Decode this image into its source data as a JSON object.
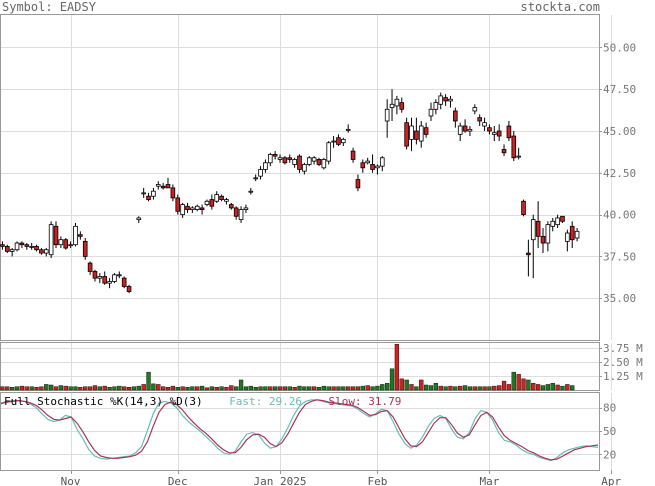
{
  "header": {
    "symbol_text": "Symbol: EADSY",
    "site_text": "stockta.com"
  },
  "stoch_legend": {
    "title": "Full Stochastic %K(14,3) %D(3)",
    "fast_label": "Fast: 29.26",
    "slow_label": "Slow: 31.79"
  },
  "colors": {
    "up_fill": "#ffffff",
    "down_fill": "#cc2222",
    "candle_edge": "#000000",
    "volume_up": "#227722",
    "volume_down": "#cc2222",
    "stoch_fast": "#66bbbb",
    "stoch_slow": "#aa3355",
    "grid": "#dddddd",
    "axis_text": "#777777"
  },
  "chart_data": [
    {
      "type": "candlestick",
      "title": "",
      "xlabel": "",
      "ylabel": "",
      "ylim": [
        32.5,
        52.0
      ],
      "y_ticks": [
        35.0,
        37.5,
        40.0,
        42.5,
        45.0,
        47.5,
        50.0
      ],
      "y_tick_labels": [
        "35.00",
        "37.50",
        "40.00",
        "42.50",
        "45.00",
        "47.50",
        "50.00"
      ],
      "x_tick_labels": [
        "Nov",
        "Dec",
        "Jan 2025",
        "Feb",
        "Mar",
        "Apr"
      ],
      "x_tick_index": [
        14,
        36,
        57,
        77,
        100,
        125
      ],
      "grid": true,
      "ohlc": [
        [
          38.2,
          38.4,
          37.9,
          38.1
        ],
        [
          38.1,
          38.2,
          37.7,
          37.8
        ],
        [
          37.8,
          38.0,
          37.5,
          37.9
        ],
        [
          37.9,
          38.4,
          37.8,
          38.3
        ],
        [
          38.3,
          38.4,
          38.0,
          38.2
        ],
        [
          38.2,
          38.3,
          37.9,
          38.1
        ],
        [
          38.1,
          38.3,
          37.9,
          38.1
        ],
        [
          38.1,
          38.2,
          37.8,
          37.9
        ],
        [
          37.9,
          38.0,
          37.6,
          37.7
        ],
        [
          37.7,
          38.0,
          37.5,
          37.9
        ],
        [
          37.6,
          39.6,
          37.4,
          39.4
        ],
        [
          39.3,
          39.6,
          38.0,
          38.2
        ],
        [
          38.2,
          38.7,
          38.0,
          38.5
        ],
        [
          38.5,
          38.6,
          37.9,
          38.0
        ],
        [
          38.2,
          38.4,
          38.0,
          38.2
        ],
        [
          38.2,
          39.5,
          38.1,
          39.3
        ],
        [
          38.8,
          39.0,
          38.5,
          38.7
        ],
        [
          38.4,
          38.6,
          37.3,
          37.5
        ],
        [
          37.1,
          37.2,
          36.4,
          36.6
        ],
        [
          36.6,
          36.7,
          36.0,
          36.2
        ],
        [
          36.2,
          36.5,
          35.9,
          36.3
        ],
        [
          36.3,
          36.6,
          35.8,
          35.9
        ],
        [
          35.9,
          36.2,
          35.6,
          36.0
        ],
        [
          36.0,
          36.5,
          35.9,
          36.4
        ],
        [
          36.4,
          36.6,
          36.2,
          36.4
        ],
        [
          36.2,
          36.3,
          35.6,
          35.7
        ],
        [
          35.7,
          35.8,
          35.3,
          35.4
        ],
        [
          39.7,
          39.9,
          39.5,
          39.8
        ],
        [
          41.3,
          41.6,
          41.0,
          41.3
        ],
        [
          41.1,
          41.3,
          40.8,
          40.9
        ],
        [
          41.1,
          41.6,
          40.9,
          41.4
        ],
        [
          41.7,
          42.0,
          41.5,
          41.8
        ],
        [
          41.7,
          41.9,
          41.5,
          41.6
        ],
        [
          41.8,
          42.2,
          41.6,
          41.6
        ],
        [
          41.6,
          41.8,
          40.8,
          41.0
        ],
        [
          41.0,
          41.2,
          40.0,
          40.2
        ],
        [
          40.0,
          40.7,
          39.8,
          40.6
        ],
        [
          40.5,
          40.7,
          40.1,
          40.3
        ],
        [
          40.3,
          40.5,
          40.1,
          40.4
        ],
        [
          40.3,
          40.6,
          40.2,
          40.5
        ],
        [
          40.4,
          40.6,
          40.0,
          40.3
        ],
        [
          40.6,
          40.9,
          40.5,
          40.8
        ],
        [
          40.9,
          41.2,
          40.3,
          40.5
        ],
        [
          40.8,
          41.4,
          40.7,
          41.2
        ],
        [
          41.1,
          41.2,
          40.8,
          40.9
        ],
        [
          40.8,
          41.0,
          40.6,
          40.9
        ],
        [
          40.6,
          40.7,
          40.3,
          40.4
        ],
        [
          40.4,
          40.5,
          39.7,
          39.9
        ],
        [
          39.7,
          40.5,
          39.5,
          40.3
        ],
        [
          40.3,
          40.6,
          40.1,
          40.4
        ],
        [
          41.4,
          41.6,
          41.2,
          41.4
        ],
        [
          42.2,
          42.4,
          42.0,
          42.2
        ],
        [
          42.3,
          42.9,
          42.1,
          42.7
        ],
        [
          42.7,
          43.3,
          42.5,
          43.1
        ],
        [
          43.1,
          43.7,
          42.9,
          43.6
        ],
        [
          43.6,
          43.8,
          43.3,
          43.5
        ],
        [
          43.3,
          43.6,
          43.1,
          43.4
        ],
        [
          43.4,
          43.5,
          43.0,
          43.1
        ],
        [
          43.4,
          43.6,
          43.1,
          43.3
        ],
        [
          43.0,
          43.4,
          42.8,
          43.3
        ],
        [
          43.5,
          43.6,
          42.5,
          42.7
        ],
        [
          42.6,
          43.1,
          42.4,
          43.0
        ],
        [
          43.0,
          43.5,
          42.9,
          43.4
        ],
        [
          43.2,
          43.5,
          43.0,
          43.4
        ],
        [
          43.3,
          43.4,
          42.9,
          43.0
        ],
        [
          42.8,
          43.4,
          42.7,
          43.3
        ],
        [
          43.2,
          44.4,
          43.0,
          44.3
        ],
        [
          44.4,
          44.7,
          44.0,
          44.4
        ],
        [
          44.6,
          44.8,
          44.1,
          44.2
        ],
        [
          44.3,
          44.6,
          44.1,
          44.5
        ],
        [
          45.1,
          45.4,
          44.9,
          45.1
        ],
        [
          43.8,
          44.0,
          43.1,
          43.3
        ],
        [
          42.1,
          42.4,
          41.4,
          41.6
        ],
        [
          43.1,
          43.3,
          42.5,
          42.8
        ],
        [
          43.1,
          43.4,
          43.0,
          43.2
        ],
        [
          43.0,
          43.6,
          42.5,
          42.7
        ],
        [
          42.8,
          43.0,
          42.4,
          42.9
        ],
        [
          42.9,
          43.5,
          42.6,
          43.4
        ],
        [
          45.6,
          46.9,
          44.6,
          46.3
        ],
        [
          46.4,
          47.5,
          45.6,
          46.6
        ],
        [
          46.5,
          47.1,
          46.0,
          46.9
        ],
        [
          46.7,
          47.0,
          46.1,
          46.3
        ],
        [
          45.5,
          45.8,
          43.9,
          44.1
        ],
        [
          44.5,
          45.8,
          43.8,
          45.3
        ],
        [
          45.0,
          45.8,
          44.2,
          44.5
        ],
        [
          44.4,
          45.6,
          44.0,
          45.3
        ],
        [
          45.2,
          45.5,
          44.6,
          44.8
        ],
        [
          45.9,
          46.7,
          45.6,
          46.3
        ],
        [
          46.3,
          46.9,
          46.0,
          46.7
        ],
        [
          46.6,
          47.3,
          46.3,
          47.1
        ],
        [
          47.0,
          47.2,
          46.5,
          46.8
        ],
        [
          46.8,
          47.1,
          46.4,
          46.9
        ],
        [
          46.2,
          46.4,
          45.2,
          45.6
        ],
        [
          44.8,
          45.5,
          44.4,
          45.3
        ],
        [
          45.3,
          45.7,
          44.9,
          45.0
        ],
        [
          45.0,
          45.3,
          44.7,
          45.1
        ],
        [
          46.2,
          46.6,
          46.0,
          46.4
        ],
        [
          45.8,
          46.0,
          45.3,
          45.6
        ],
        [
          45.3,
          45.8,
          45.0,
          45.5
        ],
        [
          45.2,
          45.4,
          44.8,
          45.0
        ],
        [
          44.8,
          45.3,
          44.4,
          44.9
        ],
        [
          45.0,
          45.4,
          44.4,
          44.7
        ],
        [
          43.9,
          44.2,
          43.5,
          43.7
        ],
        [
          45.3,
          45.6,
          44.4,
          44.6
        ],
        [
          44.7,
          45.0,
          43.2,
          43.4
        ],
        [
          43.5,
          44.0,
          43.3,
          43.5
        ],
        [
          40.8,
          40.9,
          39.9,
          40.0
        ],
        [
          37.7,
          38.5,
          36.3,
          37.6
        ],
        [
          38.5,
          40.0,
          36.2,
          39.7
        ],
        [
          39.6,
          40.8,
          38.0,
          38.7
        ],
        [
          38.7,
          39.2,
          37.7,
          38.3
        ],
        [
          38.3,
          39.6,
          37.8,
          39.4
        ],
        [
          39.3,
          39.8,
          39.0,
          39.6
        ],
        [
          39.4,
          40.0,
          39.2,
          39.8
        ],
        [
          39.9,
          39.9,
          39.5,
          39.6
        ],
        [
          38.4,
          39.1,
          37.8,
          38.9
        ],
        [
          39.3,
          39.6,
          38.0,
          38.5
        ],
        [
          38.6,
          39.2,
          38.4,
          39.0
        ]
      ],
      "x_index": [
        0,
        1,
        2,
        3,
        4,
        5,
        6,
        7,
        8,
        9,
        10,
        11,
        12,
        13,
        14,
        15,
        16,
        17,
        18,
        19,
        20,
        21,
        22,
        23,
        24,
        25,
        26,
        28,
        29,
        30,
        31,
        32,
        33,
        34,
        35,
        36,
        37,
        38,
        39,
        40,
        41,
        42,
        43,
        44,
        45,
        46,
        47,
        48,
        49,
        50,
        51,
        52,
        53,
        54,
        55,
        56,
        57,
        58,
        59,
        60,
        61,
        62,
        63,
        64,
        65,
        66,
        67,
        68,
        69,
        70,
        71,
        72,
        73,
        74,
        75,
        76,
        77,
        78,
        79,
        80,
        81,
        82,
        83,
        84,
        85,
        86,
        87,
        88,
        89,
        90,
        91,
        92,
        93,
        94,
        95,
        96,
        97,
        98,
        99,
        100,
        101,
        102,
        103,
        104,
        105,
        106,
        107,
        108,
        109,
        110,
        111,
        112,
        113,
        114,
        115,
        116,
        117,
        118
      ]
    },
    {
      "type": "bar",
      "title": "",
      "ylim": [
        0,
        4.3
      ],
      "y_ticks": [
        1.25,
        2.5,
        3.75
      ],
      "y_tick_labels": [
        "1.25 M",
        "2.50 M",
        "3.75 M"
      ],
      "values": [
        0.3,
        0.3,
        0.25,
        0.3,
        0.35,
        0.3,
        0.3,
        0.25,
        0.3,
        0.5,
        0.45,
        0.3,
        0.4,
        0.35,
        0.3,
        0.3,
        0.25,
        0.3,
        0.3,
        0.4,
        0.3,
        0.35,
        0.25,
        0.3,
        0.35,
        0.3,
        0.25,
        0.3,
        0.35,
        0.5,
        1.6,
        0.55,
        0.5,
        0.3,
        0.25,
        0.35,
        0.25,
        0.3,
        0.25,
        0.3,
        0.3,
        0.35,
        0.2,
        0.3,
        0.25,
        0.3,
        0.25,
        0.4,
        0.3,
        0.9,
        0.3,
        0.35,
        0.25,
        0.3,
        0.3,
        0.3,
        0.3,
        0.3,
        0.3,
        0.3,
        0.25,
        0.35,
        0.3,
        0.3,
        0.3,
        0.25,
        0.35,
        0.3,
        0.3,
        0.3,
        0.3,
        0.3,
        0.3,
        0.3,
        0.35,
        0.4,
        0.3,
        0.35,
        0.5,
        0.6,
        1.9,
        4.1,
        1.0,
        0.9,
        0.5,
        0.3,
        0.9,
        0.45,
        0.4,
        0.6,
        0.35,
        0.3,
        0.35,
        0.3,
        0.35,
        0.4,
        0.3,
        0.3,
        0.3,
        0.3,
        0.3,
        0.35,
        0.4,
        0.8,
        0.5,
        1.6,
        1.4,
        1.0,
        0.9,
        0.6,
        0.5,
        0.4,
        0.5,
        0.6,
        0.45,
        0.35,
        0.5,
        0.4
      ]
    },
    {
      "type": "line",
      "title": "",
      "ylim": [
        0,
        100
      ],
      "y_ticks": [
        20,
        50,
        80
      ],
      "y_tick_labels": [
        "20",
        "50",
        "80"
      ],
      "series": [
        {
          "values": [
            86,
            88,
            89,
            89,
            88,
            85,
            80,
            72,
            65,
            62,
            64,
            70,
            68,
            52,
            40,
            26,
            18,
            15,
            14,
            15,
            16,
            17,
            18,
            22,
            30,
            50,
            72,
            86,
            88,
            86,
            80,
            70,
            62,
            56,
            50,
            43,
            36,
            28,
            22,
            20,
            24,
            36,
            46,
            48,
            45,
            35,
            28,
            30,
            40,
            54,
            70,
            82,
            88,
            90,
            90,
            88,
            86,
            85,
            84,
            83,
            82,
            78,
            72,
            68,
            72,
            78,
            76,
            62,
            46,
            34,
            28,
            32,
            42,
            56,
            66,
            70,
            66,
            52,
            42,
            40,
            48,
            66,
            76,
            74,
            64,
            48,
            38,
            36,
            32,
            26,
            22,
            20,
            16,
            14,
            12,
            16,
            22,
            26,
            28,
            30,
            31,
            30,
            29
          ]
        },
        {
          "values": [
            85,
            87,
            88,
            89,
            88,
            86,
            83,
            77,
            70,
            65,
            64,
            66,
            68,
            60,
            49,
            36,
            25,
            18,
            16,
            15,
            15,
            16,
            17,
            19,
            24,
            36,
            56,
            74,
            84,
            87,
            84,
            77,
            68,
            60,
            53,
            47,
            40,
            32,
            26,
            22,
            22,
            29,
            39,
            45,
            46,
            42,
            34,
            30,
            35,
            46,
            60,
            74,
            84,
            88,
            90,
            89,
            87,
            86,
            85,
            84,
            83,
            80,
            75,
            70,
            71,
            75,
            76,
            68,
            54,
            40,
            31,
            30,
            36,
            48,
            60,
            67,
            67,
            58,
            47,
            42,
            45,
            58,
            70,
            74,
            68,
            55,
            44,
            38,
            34,
            30,
            25,
            22,
            18,
            15,
            13,
            14,
            18,
            22,
            26,
            28,
            30,
            31,
            32
          ]
        }
      ]
    }
  ]
}
